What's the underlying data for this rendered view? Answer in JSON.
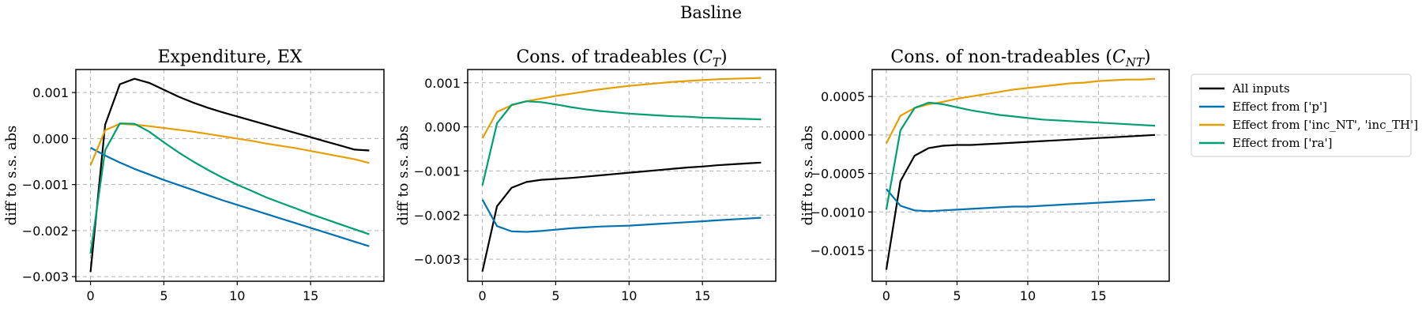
{
  "figure": {
    "title": "Basline"
  },
  "legend": {
    "placement": "right of last panel, top",
    "entries": [
      {
        "label": "All inputs",
        "color": "#000000"
      },
      {
        "label": "Effect from ['p']",
        "color": "#0072B2"
      },
      {
        "label": "Effect from ['inc_NT', 'inc_TH']",
        "color": "#E69F00"
      },
      {
        "label": "Effect from ['ra']",
        "color": "#009E73"
      }
    ]
  },
  "chart_data": [
    {
      "type": "line",
      "title": "Expenditure, EX",
      "title_main": "Expenditure, EX",
      "title_math": "",
      "title_sub": "",
      "ylabel": "diff to s.s. abs",
      "xlabel": "",
      "xlim": [
        -1,
        20
      ],
      "ylim": [
        -0.0031,
        0.0015
      ],
      "x": [
        0,
        1,
        2,
        3,
        4,
        5,
        6,
        7,
        8,
        9,
        10,
        11,
        12,
        13,
        14,
        15,
        16,
        17,
        18,
        19
      ],
      "xticks": [
        0,
        5,
        10,
        15
      ],
      "xtick_labels": [
        "0",
        "5",
        "10",
        "15"
      ],
      "yticks": [
        -0.003,
        -0.002,
        -0.001,
        0.0,
        0.001
      ],
      "ytick_labels": [
        "−0.003",
        "−0.002",
        "−0.001",
        "0.000",
        "0.001"
      ],
      "grid": true,
      "series": [
        {
          "name": "All inputs",
          "color": "#000000",
          "values": [
            -0.0029,
            0.0003,
            0.00118,
            0.0013,
            0.00121,
            0.00106,
            0.00091,
            0.00078,
            0.00067,
            0.00057,
            0.00048,
            0.00039,
            0.0003,
            0.00021,
            0.00012,
            3e-05,
            -6e-05,
            -0.00015,
            -0.00024,
            -0.00026
          ]
        },
        {
          "name": "Effect from ['p']",
          "color": "#0072B2",
          "values": [
            -0.0002,
            -0.00037,
            -0.00052,
            -0.00066,
            -0.00078,
            -0.0009,
            -0.00101,
            -0.00112,
            -0.00123,
            -0.00134,
            -0.00144,
            -0.00154,
            -0.00164,
            -0.00174,
            -0.00184,
            -0.00194,
            -0.00204,
            -0.00214,
            -0.00224,
            -0.00234
          ]
        },
        {
          "name": "Effect from ['inc_NT', 'inc_TH']",
          "color": "#E69F00",
          "values": [
            -0.00058,
            0.00018,
            0.00032,
            0.0003,
            0.00027,
            0.00023,
            0.00019,
            0.00015,
            0.0001,
            5e-05,
            0.0,
            -5e-05,
            -0.00011,
            -0.00016,
            -0.00021,
            -0.00027,
            -0.00033,
            -0.00039,
            -0.00045,
            -0.00053
          ]
        },
        {
          "name": "Effect from ['ra']",
          "color": "#009E73",
          "values": [
            -0.0025,
            -0.00025,
            0.00033,
            0.00032,
            0.00015,
            -8e-05,
            -0.0003,
            -0.0005,
            -0.00068,
            -0.00085,
            -0.001,
            -0.00114,
            -0.00128,
            -0.0014,
            -0.00152,
            -0.00164,
            -0.00175,
            -0.00186,
            -0.00197,
            -0.00208
          ]
        }
      ]
    },
    {
      "type": "line",
      "title": "Cons. of tradeables (C_T)",
      "title_main": "Cons. of tradeables (",
      "title_math": "C",
      "title_sub": "T",
      "ylabel": "diff to s.s. abs",
      "xlabel": "",
      "xlim": [
        -1,
        20
      ],
      "ylim": [
        -0.0035,
        0.0013
      ],
      "x": [
        0,
        1,
        2,
        3,
        4,
        5,
        6,
        7,
        8,
        9,
        10,
        11,
        12,
        13,
        14,
        15,
        16,
        17,
        18,
        19
      ],
      "xticks": [
        0,
        5,
        10,
        15
      ],
      "xtick_labels": [
        "0",
        "5",
        "10",
        "15"
      ],
      "yticks": [
        -0.003,
        -0.002,
        -0.001,
        0.0,
        0.001
      ],
      "ytick_labels": [
        "−0.003",
        "−0.002",
        "−0.001",
        "0.000",
        "0.001"
      ],
      "grid": true,
      "series": [
        {
          "name": "All inputs",
          "color": "#000000",
          "values": [
            -0.00328,
            -0.0018,
            -0.00138,
            -0.00125,
            -0.0012,
            -0.00118,
            -0.00116,
            -0.00113,
            -0.0011,
            -0.00107,
            -0.00104,
            -0.00101,
            -0.00098,
            -0.00095,
            -0.00092,
            -0.0009,
            -0.00087,
            -0.00085,
            -0.00083,
            -0.00081
          ]
        },
        {
          "name": "Effect from ['p']",
          "color": "#0072B2",
          "values": [
            -0.00165,
            -0.00225,
            -0.00237,
            -0.00238,
            -0.00236,
            -0.00233,
            -0.0023,
            -0.00228,
            -0.00226,
            -0.00225,
            -0.00224,
            -0.00222,
            -0.0022,
            -0.00218,
            -0.00216,
            -0.00214,
            -0.00212,
            -0.0021,
            -0.00208,
            -0.00206
          ]
        },
        {
          "name": "Effect from ['inc_NT', 'inc_TH']",
          "color": "#E69F00",
          "values": [
            -0.00026,
            0.00034,
            0.00049,
            0.00058,
            0.00064,
            0.0007,
            0.00075,
            0.0008,
            0.00085,
            0.00089,
            0.00093,
            0.00096,
            0.00099,
            0.00102,
            0.00104,
            0.00106,
            0.00108,
            0.00109,
            0.0011,
            0.00111
          ]
        },
        {
          "name": "Effect from ['ra']",
          "color": "#009E73",
          "values": [
            -0.00133,
            8e-05,
            0.0005,
            0.00058,
            0.00056,
            0.00051,
            0.00045,
            0.0004,
            0.00036,
            0.00033,
            0.0003,
            0.00028,
            0.00026,
            0.00024,
            0.00023,
            0.00021,
            0.0002,
            0.00019,
            0.00018,
            0.00017
          ]
        }
      ]
    },
    {
      "type": "line",
      "title": "Cons. of non-tradeables (C_NT)",
      "title_main": "Cons. of non-tradeables (",
      "title_math": "C",
      "title_sub": "NT",
      "ylabel": "diff to s.s. abs",
      "xlabel": "",
      "xlim": [
        -1,
        20
      ],
      "ylim": [
        -0.0019,
        0.00085
      ],
      "x": [
        0,
        1,
        2,
        3,
        4,
        5,
        6,
        7,
        8,
        9,
        10,
        11,
        12,
        13,
        14,
        15,
        16,
        17,
        18,
        19
      ],
      "xticks": [
        0,
        5,
        10,
        15
      ],
      "xtick_labels": [
        "0",
        "5",
        "10",
        "15"
      ],
      "yticks": [
        -0.0015,
        -0.001,
        -0.0005,
        0.0,
        0.0005
      ],
      "ytick_labels": [
        "−0.0015",
        "−0.0010",
        "−0.0005",
        "0.0000",
        "0.0005"
      ],
      "grid": true,
      "series": [
        {
          "name": "All inputs",
          "color": "#000000",
          "values": [
            -0.00175,
            -0.0006,
            -0.00027,
            -0.00017,
            -0.00014,
            -0.00013,
            -0.00013,
            -0.00012,
            -0.00011,
            -0.0001,
            -9e-05,
            -8e-05,
            -7e-05,
            -6e-05,
            -5e-05,
            -4e-05,
            -3e-05,
            -2e-05,
            -1e-05,
            0.0
          ]
        },
        {
          "name": "Effect from ['p']",
          "color": "#0072B2",
          "values": [
            -0.0007,
            -0.00092,
            -0.00098,
            -0.00099,
            -0.00098,
            -0.00097,
            -0.00096,
            -0.00095,
            -0.00094,
            -0.00093,
            -0.00093,
            -0.00092,
            -0.00091,
            -0.0009,
            -0.00089,
            -0.00088,
            -0.00087,
            -0.00086,
            -0.00085,
            -0.00084
          ]
        },
        {
          "name": "Effect from ['inc_NT', 'inc_TH']",
          "color": "#E69F00",
          "values": [
            -0.00011,
            0.00025,
            0.00035,
            0.0004,
            0.00043,
            0.00047,
            0.0005,
            0.00053,
            0.00056,
            0.00059,
            0.00061,
            0.00063,
            0.00065,
            0.00067,
            0.00068,
            0.0007,
            0.00071,
            0.00072,
            0.00072,
            0.00073
          ]
        },
        {
          "name": "Effect from ['ra']",
          "color": "#009E73",
          "values": [
            -0.00097,
            6e-05,
            0.00035,
            0.00042,
            0.0004,
            0.00036,
            0.00032,
            0.00029,
            0.00026,
            0.00024,
            0.00022,
            0.0002,
            0.00019,
            0.00018,
            0.00017,
            0.00016,
            0.00015,
            0.00014,
            0.00013,
            0.00012
          ]
        }
      ]
    }
  ]
}
